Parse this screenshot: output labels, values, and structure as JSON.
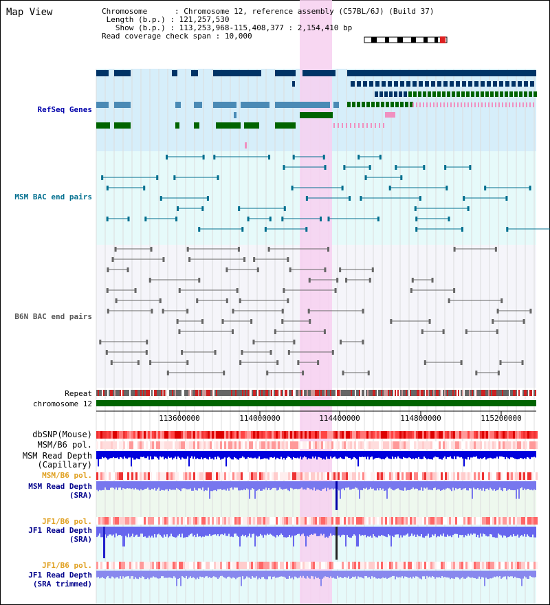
{
  "title": "Map View",
  "info": {
    "chromosome_label": "Chromosome",
    "chromosome_value": "Chromosome 12, reference assembly (C57BL/6J) (Build 37)",
    "length_label": "Length (b.p.)",
    "length_value": "121,257,530",
    "show_label": "Show (b.p.)",
    "show_value": "113,253,968-115,408,377 : 2,154,410 bp",
    "span_label": "Read coverage check span",
    "span_value": "10,000"
  },
  "tracks": {
    "refseq": "RefSeq Genes",
    "msm_bac": "MSM BAC end pairs",
    "b6n_bac": "B6N BAC end pairs",
    "repeat": "Repeat",
    "chromosome": "chromosome 12",
    "dbsnp": "dbSNP(Mouse)",
    "msm_b6_pol_1": "MSM/B6 pol.",
    "msm_depth_cap_1": "MSM Read Depth",
    "msm_depth_cap_2": "(Capillary)",
    "msm_b6_pol_2": "MSM/B6 pol.",
    "msm_depth_sra_1": "MSM Read Depth",
    "msm_depth_sra_2": "(SRA)",
    "jf1_b6_pol_1": "JF1/B6 pol.",
    "jf1_depth_sra_1": "JF1 Read Depth",
    "jf1_depth_sra_2": "(SRA)",
    "jf1_b6_pol_2": "JF1/B6 pol.",
    "jf1_depth_trim_1": "JF1 Read Depth",
    "jf1_depth_trim_2": "(SRA trimmed)"
  },
  "axis": {
    "ticks": [
      "113600000",
      "114000000",
      "114400000",
      "114800000",
      "115200000"
    ]
  },
  "colors": {
    "refseq_bg": "#d6eefa",
    "msm_bg": "#e6fafa",
    "b6n_bg": "#f5f5fa",
    "highlight": "#f7d0f0",
    "gene_navy": "#003366",
    "gene_steel": "#4a8ab5",
    "gene_green": "#006400",
    "chromosome": "#006400",
    "dbsnp": "#ee3333",
    "depth_blue": "#0000dd",
    "depth_light": "#7777ee"
  }
}
